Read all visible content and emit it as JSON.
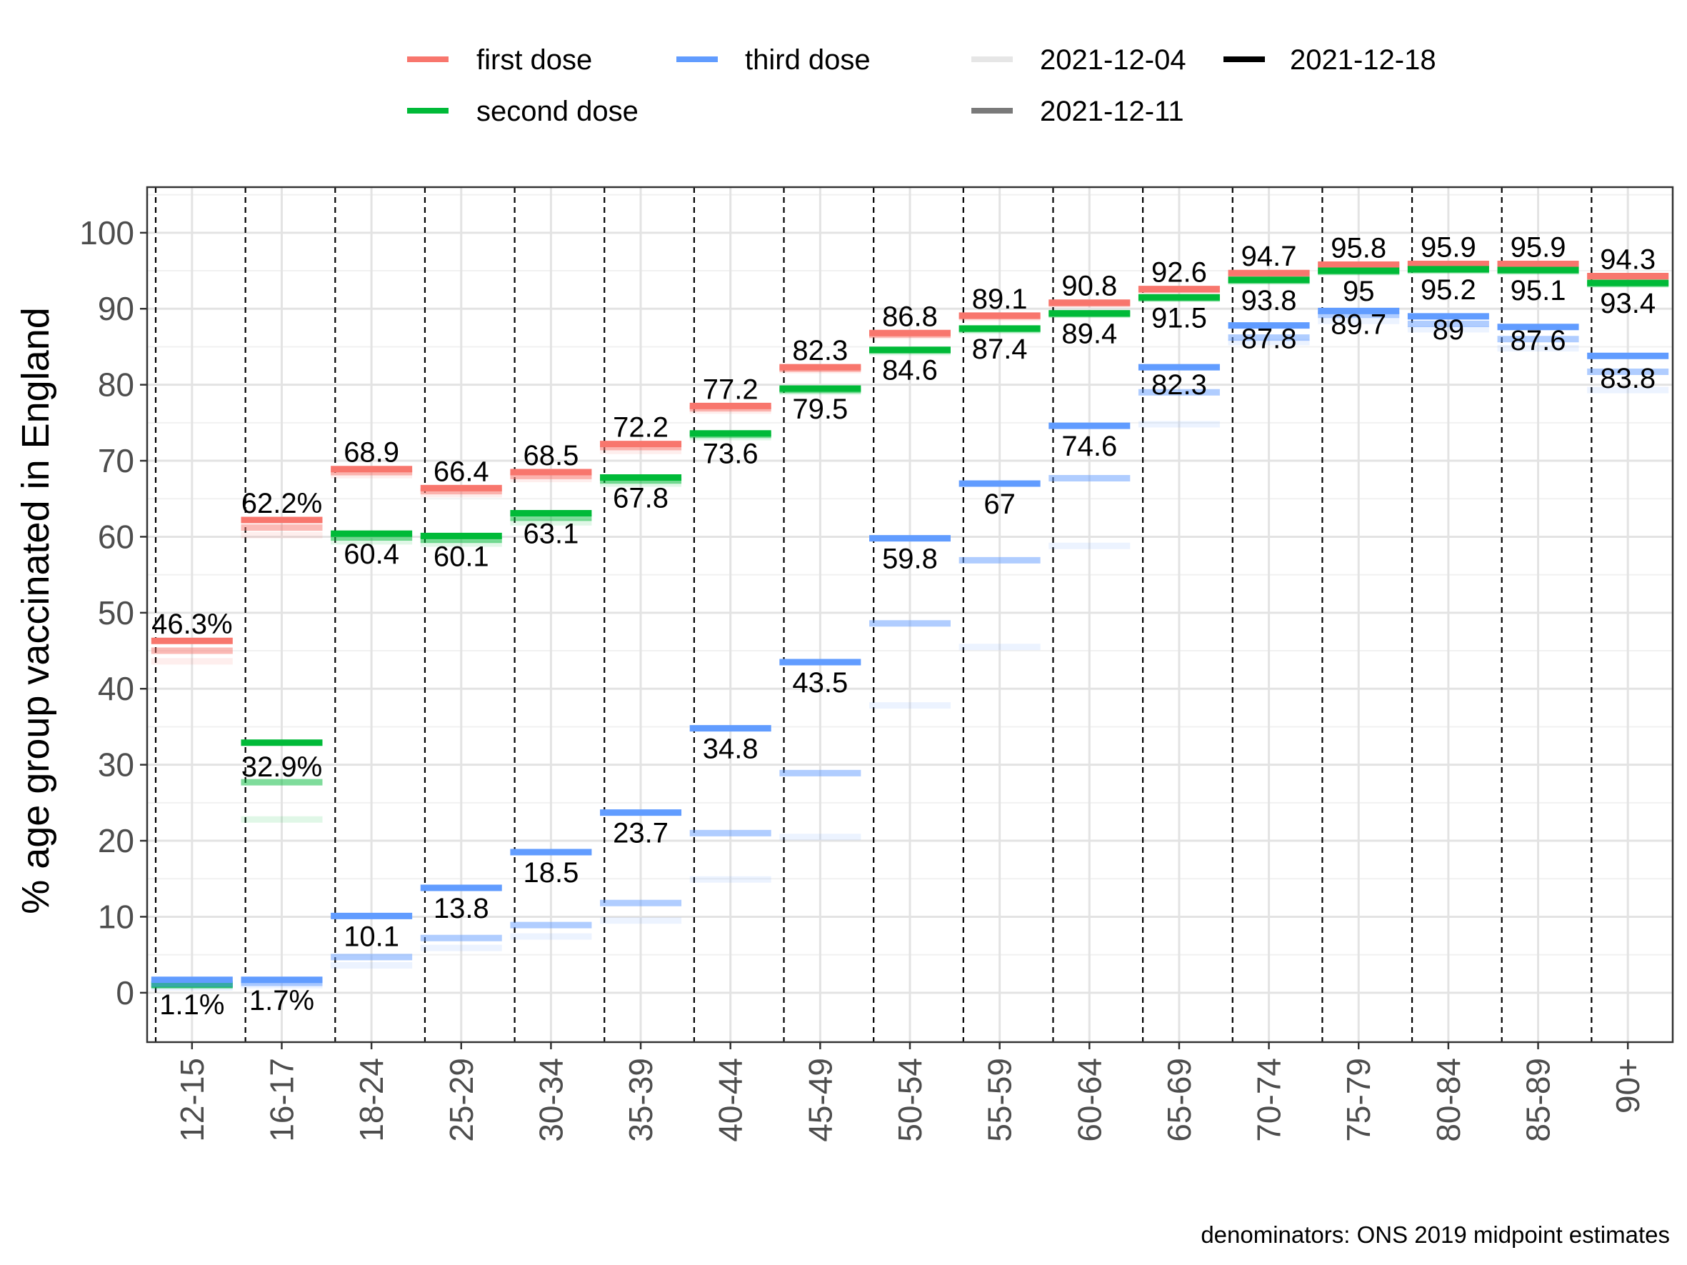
{
  "chart_data": {
    "type": "line",
    "ylabel": "% age group vaccinated in England",
    "xlabel": "",
    "caption": "denominators: ONS 2019 midpoint estimates",
    "ylim": [
      -6.5,
      106
    ],
    "yticks": [
      0,
      10,
      20,
      30,
      40,
      50,
      60,
      70,
      80,
      90,
      100
    ],
    "grid": true,
    "legend_position": "top",
    "categories": [
      "12-15",
      "16-17",
      "18-24",
      "25-29",
      "30-34",
      "35-39",
      "40-44",
      "45-49",
      "50-54",
      "55-59",
      "60-64",
      "65-69",
      "70-74",
      "75-79",
      "80-84",
      "85-89",
      "90+"
    ],
    "legend": {
      "dose_entries": [
        {
          "label": "first dose",
          "color": "#F8766D"
        },
        {
          "label": "second dose",
          "color": "#00BA38"
        },
        {
          "label": "third dose",
          "color": "#619CFF"
        }
      ],
      "date_entries": [
        {
          "label": "2021-12-04",
          "color": "#e6e6e6"
        },
        {
          "label": "2021-12-11",
          "color": "#7a7a7a"
        },
        {
          "label": "2021-12-18",
          "color": "#000000"
        }
      ]
    },
    "dates": [
      "2021-12-04",
      "2021-12-11",
      "2021-12-18"
    ],
    "series": [
      {
        "name": "first dose",
        "color": "#F8766D",
        "values_by_date": [
          [
            43.6,
            60.2,
            68.1,
            65.6,
            67.6,
            71.3,
            76.6,
            81.9,
            86.4,
            88.8,
            90.6,
            92.4,
            94.5,
            95.6,
            95.8,
            95.8,
            94.1
          ],
          [
            45.0,
            61.2,
            68.5,
            66.0,
            68.0,
            71.8,
            76.9,
            82.1,
            86.6,
            89.0,
            90.7,
            92.5,
            94.6,
            95.7,
            95.8,
            95.8,
            94.2
          ],
          [
            46.3,
            62.2,
            68.9,
            66.4,
            68.5,
            72.2,
            77.2,
            82.3,
            86.8,
            89.1,
            90.8,
            92.6,
            94.7,
            95.8,
            95.9,
            95.9,
            94.3
          ]
        ],
        "labels": [
          "46.3%",
          "62.2%",
          "68.9",
          "66.4",
          "68.5",
          "72.2",
          "77.2",
          "82.3",
          "86.8",
          "89.1",
          "90.8",
          "92.6",
          "94.7",
          "95.8",
          "95.9",
          "95.9",
          "94.3"
        ]
      },
      {
        "name": "second dose",
        "color": "#00BA38",
        "values_by_date": [
          [
            0.9,
            22.8,
            59.4,
            59.1,
            61.9,
            67.0,
            73.1,
            79.1,
            84.3,
            87.1,
            89.2,
            91.3,
            93.6,
            94.8,
            95.0,
            94.9,
            93.2
          ],
          [
            1.0,
            27.7,
            59.9,
            59.6,
            62.5,
            67.4,
            73.4,
            79.3,
            84.5,
            87.3,
            89.3,
            91.4,
            93.7,
            94.9,
            95.1,
            95.0,
            93.3
          ],
          [
            1.1,
            32.9,
            60.4,
            60.1,
            63.1,
            67.8,
            73.6,
            79.5,
            84.6,
            87.4,
            89.4,
            91.5,
            93.8,
            95.0,
            95.2,
            95.1,
            93.4
          ]
        ],
        "labels": [
          "1.1%",
          "32.9%",
          "60.4",
          "60.1",
          "63.1",
          "67.8",
          "73.6",
          "79.5",
          "84.6",
          "87.4",
          "89.4",
          "91.5",
          "93.8",
          "95",
          "95.2",
          "95.1",
          "93.4"
        ]
      },
      {
        "name": "third dose",
        "color": "#619CFF",
        "values_by_date": [
          [
            0.7,
            1.0,
            3.6,
            5.9,
            7.4,
            9.5,
            14.9,
            20.5,
            37.8,
            45.5,
            58.8,
            74.8,
            85.6,
            88.4,
            87.3,
            84.8,
            79.3
          ],
          [
            1.2,
            1.3,
            4.7,
            7.2,
            8.9,
            11.8,
            21.0,
            28.9,
            48.6,
            56.9,
            67.7,
            79.0,
            86.2,
            89.2,
            88.0,
            86.0,
            81.7
          ],
          [
            1.7,
            1.7,
            10.1,
            13.8,
            18.5,
            23.7,
            34.8,
            43.5,
            59.8,
            67.0,
            74.6,
            82.3,
            87.8,
            89.7,
            89.0,
            87.6,
            83.8
          ]
        ],
        "labels": [
          "1.7%",
          "",
          "10.1",
          "13.8",
          "18.5",
          "23.7",
          "34.8",
          "43.5",
          "59.8",
          "67",
          "74.6",
          "82.3",
          "87.8",
          "89.7",
          "89",
          "87.6",
          "83.8"
        ]
      }
    ]
  }
}
